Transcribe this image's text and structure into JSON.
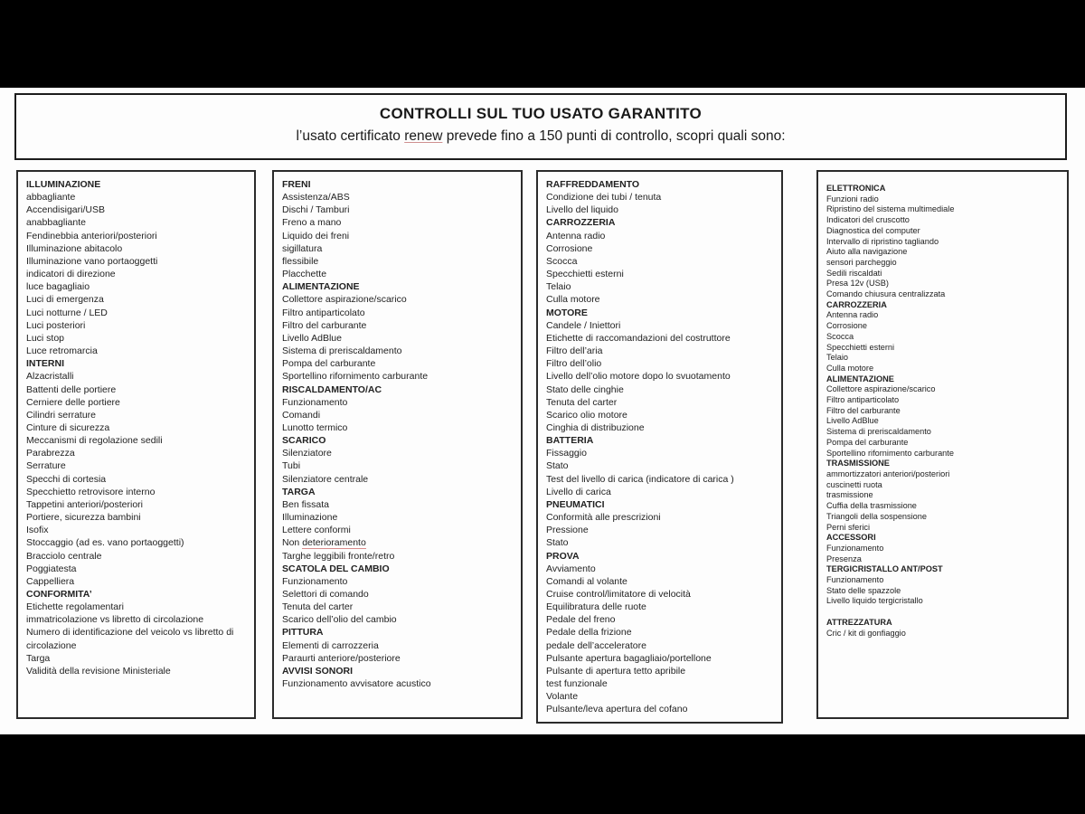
{
  "header": {
    "title": "CONTROLLI SUL TUO USATO GARANTITO",
    "subtitle_prefix": "l’usato certificato ",
    "subtitle_underlined": "renew",
    "subtitle_suffix": " prevede fino a 150 punti di controllo, scopri quali sono:"
  },
  "colors": {
    "frame_bg": "#000000",
    "page_bg": "#fdfdfd",
    "text": "#222222",
    "border": "#1c1c1c",
    "underline_accent": "#cf9090"
  },
  "columns": [
    {
      "items": [
        {
          "label": "ILLUMINAZIONE",
          "bold": true
        },
        {
          "label": "abbagliante"
        },
        {
          "label": "Accendisigari/USB"
        },
        {
          "label": "anabbagliante"
        },
        {
          "label": "Fendinebbia anteriori/posteriori"
        },
        {
          "label": "Illuminazione abitacolo"
        },
        {
          "label": "Illuminazione vano portaoggetti"
        },
        {
          "label": "indicatori di direzione"
        },
        {
          "label": "luce bagagliaio"
        },
        {
          "label": "Luci di emergenza"
        },
        {
          "label": "Luci notturne / LED"
        },
        {
          "label": "Luci posteriori"
        },
        {
          "label": "Luci stop"
        },
        {
          "label": "Luce retromarcia"
        },
        {
          "label": "INTERNI",
          "bold": true
        },
        {
          "label": "Alzacristalli"
        },
        {
          "label": "Battenti delle portiere"
        },
        {
          "label": "Cerniere delle portiere"
        },
        {
          "label": "Cilindri serrature"
        },
        {
          "label": "Cinture di sicurezza"
        },
        {
          "label": "Meccanismi di regolazione sedili"
        },
        {
          "label": "Parabrezza"
        },
        {
          "label": "Serrature"
        },
        {
          "label": "Specchi di cortesia"
        },
        {
          "label": "Specchietto retrovisore interno"
        },
        {
          "label": "Tappetini anteriori/posteriori"
        },
        {
          "label": "Portiere, sicurezza bambini"
        },
        {
          "label": "Isofix"
        },
        {
          "label": "Stoccaggio (ad es. vano portaoggetti)"
        },
        {
          "label": "Bracciolo centrale"
        },
        {
          "label": "Poggiatesta"
        },
        {
          "label": "Cappelliera"
        },
        {
          "label": "CONFORMITA’",
          "bold": true
        },
        {
          "label": "Etichette regolamentari"
        },
        {
          "label": "immatricolazione vs libretto di circolazione"
        },
        {
          "label": "Numero di identificazione del veicolo vs libretto di circolazione"
        },
        {
          "label": "Targa"
        },
        {
          "label": "Validità della revisione Ministeriale"
        }
      ]
    },
    {
      "items": [
        {
          "label": "FRENI",
          "bold": true
        },
        {
          "label": "Assistenza/ABS"
        },
        {
          "label": "Dischi / Tamburi"
        },
        {
          "label": "Freno a mano"
        },
        {
          "label": "Liquido dei freni"
        },
        {
          "label": "sigillatura"
        },
        {
          "label": "flessibile"
        },
        {
          "label": "Placchette"
        },
        {
          "label": "ALIMENTAZIONE",
          "bold": true
        },
        {
          "label": "Collettore aspirazione/scarico"
        },
        {
          "label": "Filtro antiparticolato"
        },
        {
          "label": "Filtro del carburante"
        },
        {
          "label": "Livello AdBlue"
        },
        {
          "label": "Sistema di preriscaldamento"
        },
        {
          "label": "Pompa del carburante"
        },
        {
          "label": "Sportellino rifornimento carburante"
        },
        {
          "label": "RISCALDAMENTO/AC",
          "bold": true
        },
        {
          "label": "Funzionamento"
        },
        {
          "label": "Comandi"
        },
        {
          "label": "Lunotto termico"
        },
        {
          "label": "SCARICO",
          "bold": true
        },
        {
          "label": "Silenziatore"
        },
        {
          "label": "Tubi"
        },
        {
          "label": "Silenziatore centrale"
        },
        {
          "label": "TARGA",
          "bold": true
        },
        {
          "label": "Ben fissata"
        },
        {
          "label": "Illuminazione"
        },
        {
          "label": "Lettere conformi"
        },
        {
          "label": "Non deterioramento",
          "underline": "deterioramento"
        },
        {
          "label": "Targhe leggibili fronte/retro"
        },
        {
          "label": "SCATOLA DEL CAMBIO",
          "bold": true
        },
        {
          "label": "Funzionamento"
        },
        {
          "label": "Selettori di comando"
        },
        {
          "label": "Tenuta del carter"
        },
        {
          "label": "Scarico dell’olio del cambio"
        },
        {
          "label": "PITTURA",
          "bold": true
        },
        {
          "label": "Elementi di carrozzeria"
        },
        {
          "label": "Paraurti anteriore/posteriore"
        },
        {
          "label": "AVVISI SONORI",
          "bold": true
        },
        {
          "label": "Funzionamento avvisatore acustico"
        }
      ]
    },
    {
      "items": [
        {
          "label": "RAFFREDDAMENTO",
          "bold": true
        },
        {
          "label": "Condizione dei tubi / tenuta"
        },
        {
          "label": "Livello del liquido"
        },
        {
          "label": "CARROZZERIA",
          "bold": true
        },
        {
          "label": "Antenna radio"
        },
        {
          "label": "Corrosione"
        },
        {
          "label": "Scocca"
        },
        {
          "label": "Specchietti esterni"
        },
        {
          "label": "Telaio"
        },
        {
          "label": "Culla motore"
        },
        {
          "label": "MOTORE",
          "bold": true
        },
        {
          "label": "Candele / Iniettori"
        },
        {
          "label": "Etichette di raccomandazioni del costruttore"
        },
        {
          "label": "Filtro dell’aria"
        },
        {
          "label": "Filtro dell’olio"
        },
        {
          "label": "Livello dell’olio motore dopo lo svuotamento"
        },
        {
          "label": "Stato delle cinghie"
        },
        {
          "label": "Tenuta del carter"
        },
        {
          "label": "Scarico olio motore"
        },
        {
          "label": "Cinghia di distribuzione"
        },
        {
          "label": "BATTERIA",
          "bold": true
        },
        {
          "label": "Fissaggio"
        },
        {
          "label": "Stato"
        },
        {
          "label": "Test del livello di carica (indicatore di carica )"
        },
        {
          "label": "Livello di carica"
        },
        {
          "label": "PNEUMATICI",
          "bold": true
        },
        {
          "label": "Conformità alle prescrizioni"
        },
        {
          "label": "Pressione"
        },
        {
          "label": "Stato"
        },
        {
          "label": "PROVA",
          "bold": true
        },
        {
          "label": "Avviamento"
        },
        {
          "label": "Comandi al volante"
        },
        {
          "label": "Cruise control/limitatore di velocità"
        },
        {
          "label": "Equilibratura delle ruote"
        },
        {
          "label": "Pedale del freno"
        },
        {
          "label": "Pedale della frizione"
        },
        {
          "label": "pedale dell’acceleratore"
        },
        {
          "label": "Pulsante apertura bagagliaio/portellone"
        },
        {
          "label": "Pulsante di apertura tetto apribile"
        },
        {
          "label": "test funzionale"
        },
        {
          "label": "Volante"
        },
        {
          "label": "Pulsante/leva apertura del cofano"
        }
      ]
    },
    {
      "items": [
        {
          "label": "ELETTRONICA",
          "bold": true
        },
        {
          "label": "Funzioni radio"
        },
        {
          "label": "Ripristino del sistema multimediale"
        },
        {
          "label": "Indicatori del cruscotto"
        },
        {
          "label": "Diagnostica del computer"
        },
        {
          "label": "Intervallo di ripristino tagliando"
        },
        {
          "label": "Aiuto alla navigazione"
        },
        {
          "label": "sensori parcheggio"
        },
        {
          "label": "Sedili riscaldati"
        },
        {
          "label": "Presa 12v (USB)"
        },
        {
          "label": "Comando chiusura centralizzata"
        },
        {
          "label": "CARROZZERIA",
          "bold": true
        },
        {
          "label": "Antenna radio"
        },
        {
          "label": "Corrosione"
        },
        {
          "label": "Scocca"
        },
        {
          "label": "Specchietti esterni"
        },
        {
          "label": "Telaio"
        },
        {
          "label": "Culla motore"
        },
        {
          "label": "ALIMENTAZIONE",
          "bold": true
        },
        {
          "label": "Collettore aspirazione/scarico"
        },
        {
          "label": "Filtro antiparticolato"
        },
        {
          "label": "Filtro del carburante"
        },
        {
          "label": "Livello AdBlue"
        },
        {
          "label": "Sistema di preriscaldamento"
        },
        {
          "label": "Pompa del carburante"
        },
        {
          "label": "Sportellino rifornimento carburante"
        },
        {
          "label": "TRASMISSIONE",
          "bold": true
        },
        {
          "label": "ammortizzatori anteriori/posteriori"
        },
        {
          "label": "cuscinetti ruota"
        },
        {
          "label": "trasmissione"
        },
        {
          "label": "Cuffia della trasmissione"
        },
        {
          "label": "Triangoli della sospensione"
        },
        {
          "label": "Perni sferici"
        },
        {
          "label": "ACCESSORI",
          "bold": true
        },
        {
          "label": "Funzionamento"
        },
        {
          "label": "Presenza"
        },
        {
          "label": "TERGICRISTALLO ANT/POST",
          "bold": true
        },
        {
          "label": "Funzionamento"
        },
        {
          "label": "Stato delle spazzole"
        },
        {
          "label": "Livello liquido tergicristallo"
        },
        {
          "label": "",
          "spacer": true
        },
        {
          "label": "ATTREZZATURA",
          "bold": true
        },
        {
          "label": "Cric / kit di gonfiaggio"
        }
      ]
    }
  ]
}
